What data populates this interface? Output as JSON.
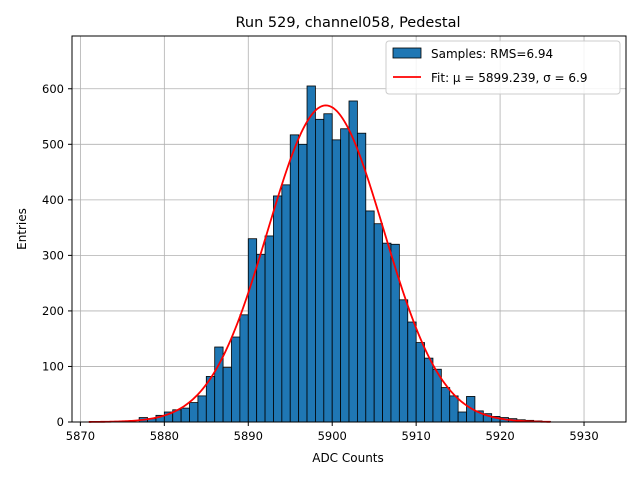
{
  "chart_data": {
    "type": "bar",
    "title": "Run 529, channel058, Pedestal",
    "xlabel": "ADC Counts",
    "ylabel": "Entries",
    "xlim": [
      5869,
      5935
    ],
    "ylim": [
      0,
      695
    ],
    "xticks": [
      5870,
      5880,
      5890,
      5900,
      5910,
      5920,
      5930
    ],
    "yticks": [
      0,
      100,
      200,
      300,
      400,
      500,
      600
    ],
    "grid": true,
    "legend_position": "top-right",
    "bin_width": 1,
    "histogram": {
      "name": "Samples: RMS=6.94",
      "color": "#1f77b4",
      "bin_left_edges": [
        5877,
        5878,
        5879,
        5880,
        5881,
        5882,
        5883,
        5884,
        5885,
        5886,
        5887,
        5888,
        5889,
        5890,
        5891,
        5892,
        5893,
        5894,
        5895,
        5896,
        5897,
        5898,
        5899,
        5900,
        5901,
        5902,
        5903,
        5904,
        5905,
        5906,
        5907,
        5908,
        5909,
        5910,
        5911,
        5912,
        5913,
        5914,
        5915,
        5916,
        5917,
        5918,
        5919,
        5920,
        5921,
        5922,
        5923,
        5924,
        5925
      ],
      "counts": [
        8,
        6,
        12,
        18,
        22,
        25,
        35,
        47,
        82,
        135,
        98,
        153,
        193,
        330,
        302,
        335,
        407,
        427,
        517,
        500,
        605,
        545,
        555,
        508,
        528,
        578,
        520,
        380,
        357,
        322,
        320,
        220,
        180,
        143,
        115,
        95,
        62,
        47,
        18,
        46,
        20,
        15,
        10,
        8,
        6,
        4,
        3,
        2,
        1
      ]
    },
    "fit": {
      "name": "Fit: μ = 5899.239, σ = 6.9",
      "mu": 5899.239,
      "sigma": 6.9,
      "amplitude": 570,
      "x_range": [
        5871,
        5926
      ],
      "color": "#ff0000"
    }
  }
}
